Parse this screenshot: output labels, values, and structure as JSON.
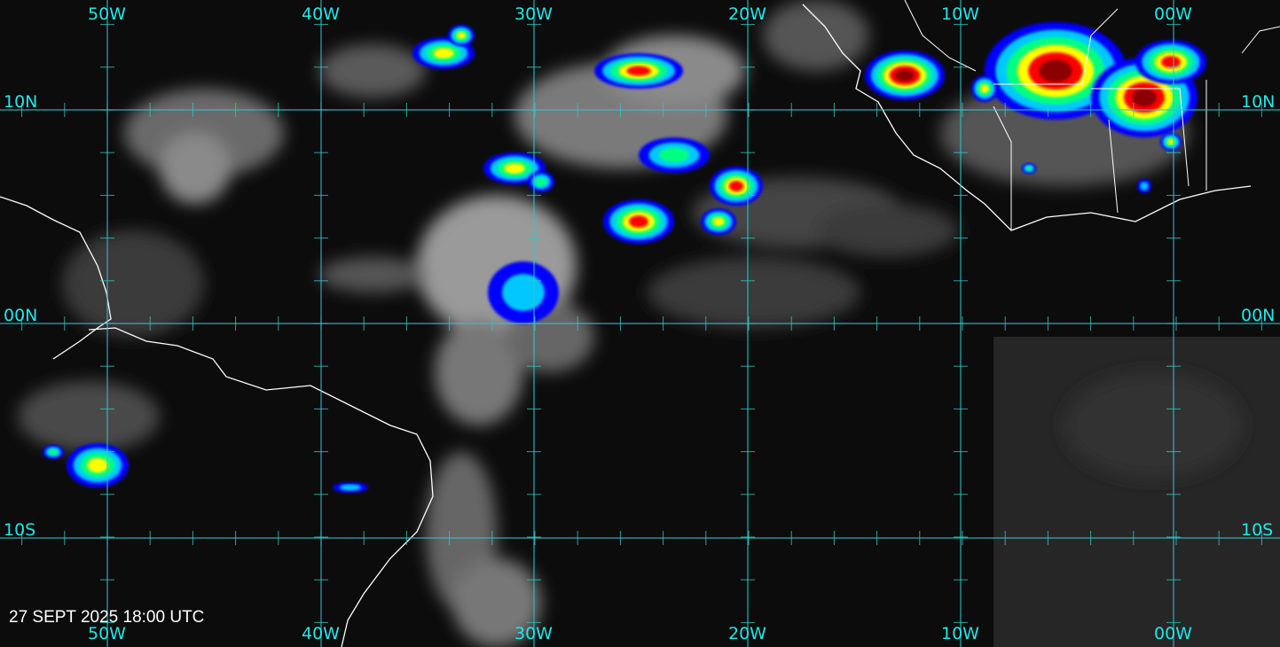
{
  "map": {
    "type": "infrared satellite imagery",
    "timestamp": "27 SEPT 2025 18:00 UTC",
    "longitude_labels": [
      "50W",
      "40W",
      "30W",
      "20W",
      "10W",
      "00W"
    ],
    "latitude_labels": [
      "10N",
      "00N",
      "10S"
    ],
    "colors": {
      "grid": "#2fc8c8",
      "labels": "#1ee8e8",
      "coastline": "#ffffff",
      "cold_tops": [
        "#8b0000",
        "#ff0000",
        "#ffff00",
        "#00ff80",
        "#00c8ff",
        "#0000ff"
      ]
    }
  }
}
